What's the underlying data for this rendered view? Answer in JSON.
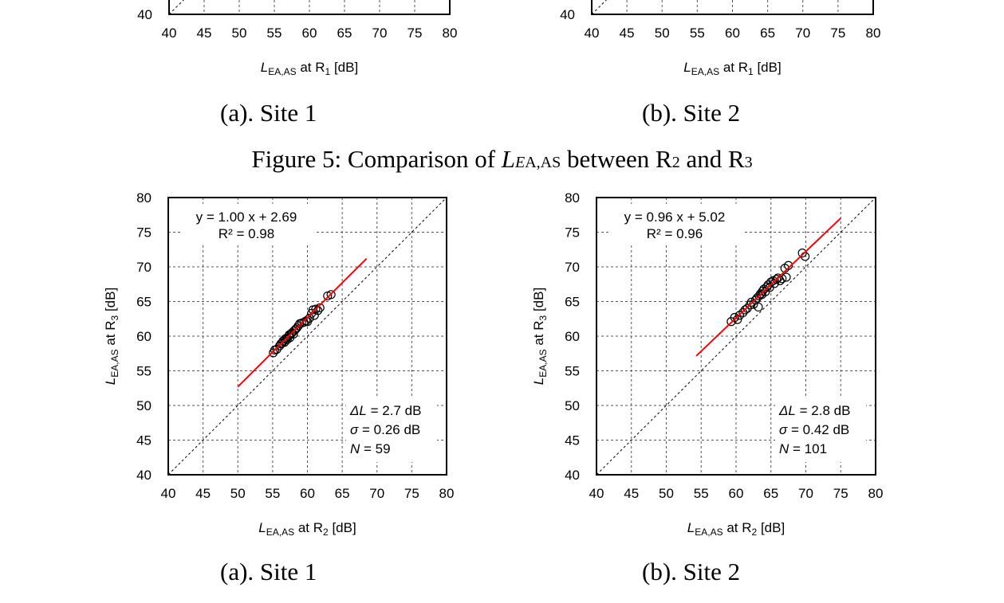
{
  "figure_title": {
    "prefix": "Figure 5: Comparison of ",
    "L": "L",
    "E": "E",
    "sub": "A,AS",
    "middle": " between R",
    "r2": "2",
    "and": " and R",
    "r3": "3"
  },
  "captions": {
    "top_left": "(a). Site 1",
    "top_right": "(b). Site 2",
    "bottom_left": "(a). Site 1",
    "bottom_right": "(b). Site 2"
  },
  "chart_data": [
    {
      "id": "top-site1",
      "type": "scatter",
      "partial": true,
      "xlabel": {
        "L": "L",
        "sub": "EA,AS",
        "rest": " at R",
        "r": "1",
        "unit": " [dB]"
      },
      "xlim": [
        40,
        80
      ],
      "ylim": [
        40,
        80
      ],
      "xticks": [
        40,
        45,
        50,
        55,
        60,
        65,
        70,
        75,
        80
      ],
      "yticks": [
        40
      ],
      "grid": true
    },
    {
      "id": "top-site2",
      "type": "scatter",
      "partial": true,
      "xlabel": {
        "L": "L",
        "sub": "EA,AS",
        "rest": " at R",
        "r": "1",
        "unit": " [dB]"
      },
      "xlim": [
        40,
        80
      ],
      "ylim": [
        40,
        80
      ],
      "xticks": [
        40,
        45,
        50,
        55,
        60,
        65,
        70,
        75,
        80
      ],
      "yticks": [
        40
      ],
      "grid": true
    },
    {
      "id": "bottom-site1",
      "type": "scatter",
      "xlabel": {
        "L": "L",
        "sub": "EA,AS",
        "rest": " at R",
        "r": "2",
        "unit": " [dB]"
      },
      "ylabel": {
        "L": "L",
        "sub": "EA,AS",
        "rest": " at R",
        "r": "3",
        "unit": " [dB]"
      },
      "xlim": [
        40,
        80
      ],
      "ylim": [
        40,
        80
      ],
      "xticks": [
        40,
        45,
        50,
        55,
        60,
        65,
        70,
        75,
        80
      ],
      "yticks": [
        40,
        45,
        50,
        55,
        60,
        65,
        70,
        75,
        80
      ],
      "grid": true,
      "equation": "y = 1.00 x + 2.69",
      "r2": "R² = 0.98",
      "fit": {
        "slope": 1.0,
        "intercept": 2.69,
        "xrange": [
          50,
          68.5
        ]
      },
      "stats": {
        "dL": "= 2.7 dB",
        "sigma": "= 0.26 dB",
        "N": "= 59"
      },
      "points": [
        [
          55.1,
          57.6
        ],
        [
          55.3,
          58.0
        ],
        [
          55.6,
          58.1
        ],
        [
          56.0,
          58.6
        ],
        [
          56.2,
          58.9
        ],
        [
          56.4,
          59.0
        ],
        [
          56.5,
          59.3
        ],
        [
          56.7,
          59.1
        ],
        [
          56.8,
          59.6
        ],
        [
          57.0,
          59.7
        ],
        [
          57.1,
          59.5
        ],
        [
          57.3,
          60.0
        ],
        [
          57.4,
          60.2
        ],
        [
          57.5,
          59.8
        ],
        [
          57.7,
          60.4
        ],
        [
          57.8,
          60.5
        ],
        [
          58.0,
          60.3
        ],
        [
          58.1,
          60.8
        ],
        [
          58.3,
          61.0
        ],
        [
          58.5,
          61.2
        ],
        [
          58.7,
          61.5
        ],
        [
          58.9,
          61.8
        ],
        [
          59.2,
          61.9
        ],
        [
          59.5,
          62.0
        ],
        [
          59.8,
          62.2
        ],
        [
          60.0,
          62.1
        ],
        [
          60.3,
          62.6
        ],
        [
          60.6,
          63.3
        ],
        [
          60.8,
          63.8
        ],
        [
          61.0,
          63.0
        ],
        [
          61.2,
          63.9
        ],
        [
          61.5,
          63.7
        ],
        [
          61.8,
          64.1
        ],
        [
          62.9,
          65.8
        ],
        [
          63.4,
          66.0
        ]
      ]
    },
    {
      "id": "bottom-site2",
      "type": "scatter",
      "xlabel": {
        "L": "L",
        "sub": "EA,AS",
        "rest": " at R",
        "r": "2",
        "unit": " [dB]"
      },
      "ylabel": {
        "L": "L",
        "sub": "EA,AS",
        "rest": " at R",
        "r": "3",
        "unit": " [dB]"
      },
      "xlim": [
        40,
        80
      ],
      "ylim": [
        40,
        80
      ],
      "xticks": [
        40,
        45,
        50,
        55,
        60,
        65,
        70,
        75,
        80
      ],
      "yticks": [
        40,
        45,
        50,
        55,
        60,
        65,
        70,
        75,
        80
      ],
      "grid": true,
      "equation": "y = 0.96 x + 5.02",
      "r2": "R² = 0.96",
      "fit": {
        "slope": 0.96,
        "intercept": 5.02,
        "xrange": [
          54.3,
          75
        ]
      },
      "stats": {
        "dL": "= 2.8 dB",
        "sigma": "= 0.42 dB",
        "N": "= 101"
      },
      "points": [
        [
          59.3,
          62.1
        ],
        [
          59.8,
          62.7
        ],
        [
          60.2,
          62.4
        ],
        [
          60.5,
          63.0
        ],
        [
          61.0,
          63.4
        ],
        [
          61.3,
          63.8
        ],
        [
          61.6,
          64.0
        ],
        [
          62.0,
          64.5
        ],
        [
          62.2,
          64.9
        ],
        [
          62.5,
          64.6
        ],
        [
          62.8,
          65.2
        ],
        [
          63.0,
          65.5
        ],
        [
          63.2,
          64.2
        ],
        [
          63.3,
          65.8
        ],
        [
          63.5,
          66.1
        ],
        [
          63.7,
          66.0
        ],
        [
          63.8,
          66.5
        ],
        [
          64.0,
          66.8
        ],
        [
          64.2,
          66.4
        ],
        [
          64.4,
          67.1
        ],
        [
          64.6,
          67.4
        ],
        [
          64.8,
          67.0
        ],
        [
          65.0,
          67.8
        ],
        [
          65.3,
          68.0
        ],
        [
          65.5,
          67.6
        ],
        [
          65.8,
          68.2
        ],
        [
          66.0,
          68.4
        ],
        [
          66.3,
          68.0
        ],
        [
          66.6,
          68.3
        ],
        [
          67.0,
          69.8
        ],
        [
          67.2,
          68.5
        ],
        [
          67.5,
          70.2
        ],
        [
          69.5,
          72.0
        ],
        [
          69.9,
          71.5
        ]
      ]
    }
  ],
  "colors": {
    "fit": "#ff0000",
    "grid": "#555555",
    "axis": "#000000"
  }
}
